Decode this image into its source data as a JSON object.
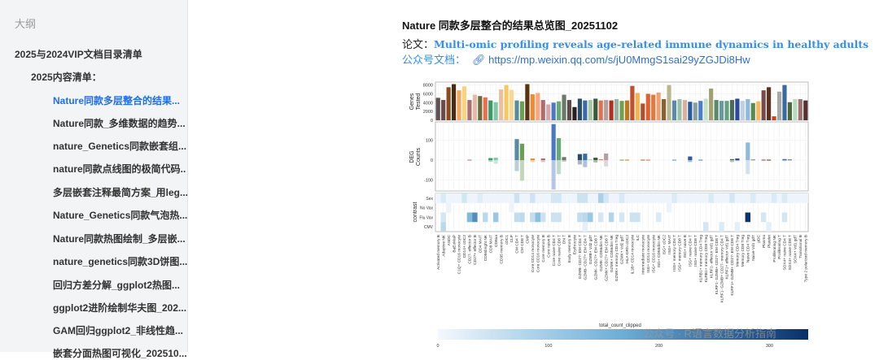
{
  "sidebar": {
    "title": "大纲",
    "items": [
      {
        "label": "2025与2024VIP文档目录清单",
        "level": 1
      },
      {
        "label": "2025内容清单：",
        "level": 2
      },
      {
        "label": "Nature同款多层整合的结果...",
        "level": 3,
        "active": true
      },
      {
        "label": "Nature同款_多维数据的趋势...",
        "level": 3
      },
      {
        "label": "nature_Genetics同款嵌套组...",
        "level": 3
      },
      {
        "label": "nature同款点线图的极简代码..",
        "level": 3
      },
      {
        "label": "多层嵌套注释最简方案_用leg...",
        "level": 3
      },
      {
        "label": "Nature_Genetics同款气泡热...",
        "level": 3
      },
      {
        "label": "Nature同款热图绘制_多层嵌...",
        "level": 3
      },
      {
        "label": "nature_genetics同款3D饼图...",
        "level": 3
      },
      {
        "label": "回归方差分解_ggplot2热图...",
        "level": 3
      },
      {
        "label": "ggplot2进阶绘制华夫图_202...",
        "level": 3
      },
      {
        "label": "GAM回归ggplot2_非线性趋...",
        "level": 3
      },
      {
        "label": "嵌套分面热图可视化_202510...",
        "level": 3
      }
    ]
  },
  "doc": {
    "title": "Nature 同款多层整合的结果总览图_20251102",
    "paper_label": "论文：",
    "paper_title": "Multi-omic profiling reveals age-related immune dynamics in healthy adults",
    "wechat_label": "公众号文档：",
    "link_icon": "link-icon",
    "url": "https://mp.weixin.qq.com/s/jU0MmgS1sai29yZGJDi8Hw"
  },
  "watermark": "公众号 · R语言数据分析指南",
  "chart_data": {
    "type": "bar",
    "categories": [
      "Activated memory B",
      "Adaptive NK",
      "ASDC",
      "BaEoMaP",
      "C1Q+ CD16 monocyte",
      "CD14+ cDC2",
      "CD27- effector B",
      "CD27+ effector B",
      "CD4 MAIT",
      "CD56bright NK",
      "CD8 MAIT",
      "CD8aa",
      "CD95 memory B",
      "cDC1",
      "CLP",
      "CM CD4 T",
      "CM CD8 T",
      "CMP",
      "Core CD14 monocyte",
      "Core CD16 monocyte",
      "Core memory B",
      "Core naive B",
      "Core naive CD4 T",
      "Core naive CD8 T",
      "DN T",
      "Early memory B",
      "Erythrocyte",
      "GZMB- CD27- EM CD4 T",
      "GZMB- CD27+ EM CD4 T",
      "GZMB+ Vd2 gdT",
      "GZMK- CD27+ EM CD8 T",
      "GZMK- CD56dim NK",
      "GZMK+ CD27+ EM CD8 T",
      "GZMK+ CD56dim NK",
      "GZMK+ memory CD4 Treg",
      "GZMK+ Vd2 gdT",
      "HLA-DRhi cDC2",
      "IL1B+ CD14 monocyte",
      "ILC",
      "Intermediate monocyte",
      "ISG+ CD14 monocyte",
      "ISG+ CD16 monocyte",
      "ISG+ CD56dim NK",
      "ISG+ cDC2",
      "ISG+ MAIT",
      "ISG+ memory CD4 T",
      "ISG+ memory CD8 T",
      "ISG+ naive B",
      "ISG+ naive CD4 T",
      "ISG+ naive CD8 T",
      "KLRB1+ memory CD4 Treg",
      "KLRB1+ memory CD8 Treg",
      "KLRF1- effector Vd1 gdT",
      "KLRF1- GZMB+ CD27- EM CD8 T",
      "KLRF1- GZMB+ CD27- memory CD4 T",
      "KLRF1+ effector Vd1 gdT",
      "KLRF1+ GZMB+ CD27- EM CD8 T",
      "Memory CD4 Treg",
      "Memory CD8 Treg",
      "Naive CD4 Treg",
      "Naive Vd1 gdT",
      "pDC",
      "Plasma",
      "Platelet",
      "Proliferating NK",
      "Proliferating T",
      "SOX4+ naive CD4 T",
      "SOX4+ naive CD8 T",
      "SOX4+ Vd1 gdT",
      "Transitional B",
      "Type 2 polarized memory B"
    ],
    "genes_tested": {
      "ylabel": "Genes Tested",
      "ticks": [
        0,
        2000,
        4000,
        6000,
        8000
      ],
      "ylim": [
        0,
        8300
      ],
      "values": [
        5100,
        4600,
        7500,
        8200,
        6800,
        7700,
        4600,
        5800,
        5500,
        5200,
        4500,
        4100,
        7000,
        8000,
        6900,
        4500,
        4300,
        8200,
        5900,
        6200,
        4600,
        3600,
        4000,
        4300,
        5800,
        4600,
        3000,
        4900,
        4500,
        4600,
        4900,
        4500,
        4600,
        4500,
        4800,
        4400,
        4500,
        7800,
        6200,
        3800,
        6000,
        5800,
        6300,
        4800,
        8000,
        4500,
        4800,
        4600,
        4200,
        4000,
        4400,
        4900,
        7200,
        4600,
        4400,
        4400,
        4600,
        4900,
        4400,
        4800,
        3900,
        4300,
        6800,
        7500,
        900,
        6500,
        8000,
        4100,
        4800,
        4800,
        4500
      ]
    },
    "colors": [
      "#5e5257",
      "#6b4a4a",
      "#8b4a1f",
      "#4a2a14",
      "#f0a860",
      "#fcd27a",
      "#a87070",
      "#e6b8a8",
      "#6a6a3a",
      "#e87050",
      "#3a9a6a",
      "#7ec8a8",
      "#e8c0a0",
      "#f8c860",
      "#f8d890",
      "#5a8aa0",
      "#6aa050",
      "#5a3410",
      "#f08a30",
      "#f8a880",
      "#b06a70",
      "#d8a8a8",
      "#4a78c8",
      "#6aa87a",
      "#6a7a6a",
      "#5a4a4a",
      "#2a2020",
      "#2a4a6a",
      "#3a6aa8",
      "#a8c8a8",
      "#3a5a3a",
      "#e07050",
      "#b0a0a0",
      "#b03020",
      "#9ab0a0",
      "#70a050",
      "#c07820",
      "#c05030",
      "#f8b050",
      "#b05030",
      "#e06030",
      "#e07a40",
      "#f0a070",
      "#8a6030",
      "#b8b890",
      "#5a8ab0",
      "#9ac0a8",
      "#d8b0a0",
      "#2a5aa0",
      "#8aa0a0",
      "#4a80c8",
      "#c8e0c8",
      "#a0a070",
      "#5a8a6a",
      "#6a9aa0",
      "#6aa080",
      "#4a6a5a",
      "#2a4aa0",
      "#c0d0e0",
      "#90b8d8",
      "#5a8a50",
      "#f8b860",
      "#7a4a4a",
      "#5a3020",
      "#d04020",
      "#a8a8a8",
      "#3a6aa0",
      "#4a6a3a",
      "#b8d8c0",
      "#a07070",
      "#5a3030"
    ],
    "deg": {
      "ylabel": "DEG Counts",
      "ticks": [
        -100,
        0,
        100
      ],
      "ylim": [
        -165,
        200
      ],
      "up": {
        "6": 2,
        "10": 10,
        "11": 12,
        "15": 105,
        "16": 82,
        "18": 8,
        "20": 8,
        "22": 180,
        "23": 110,
        "24": 15,
        "27": 30,
        "28": 32,
        "29": 3,
        "30": 12,
        "31": 4,
        "32": 33,
        "35": 2,
        "36": 2,
        "39": 2,
        "40": 2,
        "45": 2,
        "48": 18,
        "50": 2,
        "56": 5,
        "57": 8,
        "59": 88,
        "60": 3,
        "62": 2,
        "63": 2,
        "66": 5,
        "67": 3
      },
      "down": {
        "10": -8,
        "11": -18,
        "15": -55,
        "16": -103,
        "18": -10,
        "20": -10,
        "22": -147,
        "23": -70,
        "24": -8,
        "27": -22,
        "28": -35,
        "30": -12,
        "32": -32,
        "48": -10,
        "56": -10,
        "57": -5,
        "59": -70,
        "66": -5
      }
    },
    "contrast": {
      "ylabel": "contrast",
      "rows": [
        "Sex",
        "No Vax",
        "Flu Vax",
        "CMV"
      ],
      "cells": [
        [
          0,
          1,
          30
        ],
        [
          0,
          5,
          40
        ],
        [
          0,
          8,
          25
        ],
        [
          0,
          15,
          50
        ],
        [
          0,
          18,
          45
        ],
        [
          0,
          22,
          40
        ],
        [
          0,
          23,
          40
        ],
        [
          0,
          27,
          50
        ],
        [
          0,
          28,
          50
        ],
        [
          0,
          31,
          90
        ],
        [
          0,
          32,
          40
        ],
        [
          0,
          35,
          35
        ],
        [
          0,
          45,
          30
        ],
        [
          0,
          52,
          30
        ],
        [
          0,
          56,
          40
        ],
        [
          0,
          60,
          30
        ],
        [
          0,
          64,
          30
        ],
        [
          0,
          66,
          30
        ],
        [
          1,
          2,
          10
        ],
        [
          1,
          14,
          10
        ],
        [
          1,
          44,
          10
        ],
        [
          2,
          1,
          40
        ],
        [
          2,
          6,
          140
        ],
        [
          2,
          7,
          210
        ],
        [
          2,
          9,
          70
        ],
        [
          2,
          11,
          110
        ],
        [
          2,
          15,
          60
        ],
        [
          2,
          16,
          70
        ],
        [
          2,
          18,
          60
        ],
        [
          2,
          19,
          130
        ],
        [
          2,
          20,
          50
        ],
        [
          2,
          22,
          50
        ],
        [
          2,
          23,
          50
        ],
        [
          2,
          27,
          60
        ],
        [
          2,
          28,
          70
        ],
        [
          2,
          29,
          110
        ],
        [
          2,
          31,
          40
        ],
        [
          2,
          33,
          80
        ],
        [
          2,
          35,
          40
        ],
        [
          2,
          37,
          50
        ],
        [
          2,
          38,
          50
        ],
        [
          2,
          42,
          30
        ],
        [
          2,
          59,
          330
        ],
        [
          2,
          62,
          40
        ],
        [
          2,
          66,
          40
        ],
        [
          3,
          1,
          70
        ],
        [
          3,
          28,
          20
        ],
        [
          3,
          51,
          40
        ],
        [
          3,
          54,
          30
        ],
        [
          3,
          57,
          20
        ],
        [
          3,
          63,
          20
        ]
      ]
    },
    "legend": {
      "title": "total_count_clipped",
      "ticks": [
        0,
        100,
        200,
        300
      ],
      "range": [
        0,
        335
      ],
      "low_color": "#f4f8fd",
      "high_color": "#08306b"
    }
  }
}
